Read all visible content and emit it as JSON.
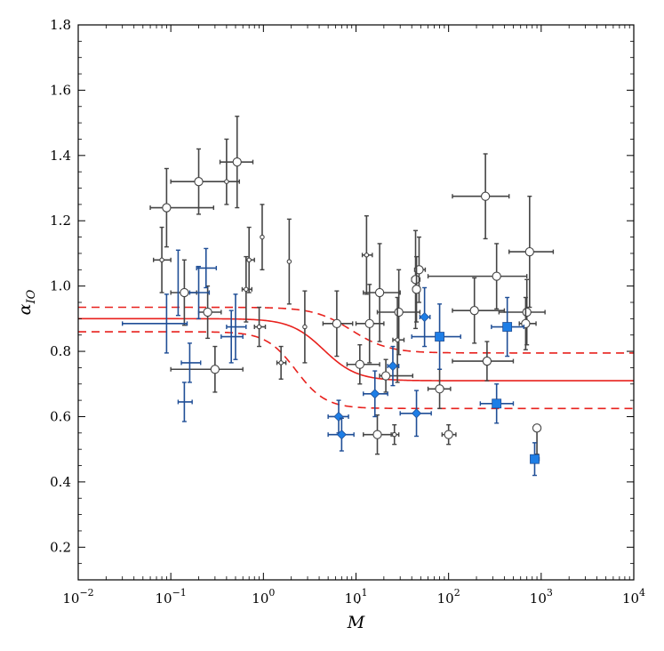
{
  "chart_data": {
    "type": "scatter",
    "title": "",
    "xlabel": "M",
    "xlabel_accent": "˙",
    "ylabel": "α",
    "ylabel_sub": "IO",
    "xscale": "log",
    "xlim": [
      0.01,
      10000
    ],
    "ylim": [
      0.1,
      1.8
    ],
    "x_ticks": [
      {
        "value": 0.01,
        "base": "10",
        "exp": "−2"
      },
      {
        "value": 0.1,
        "base": "10",
        "exp": "−1"
      },
      {
        "value": 1,
        "base": "10",
        "exp": "0"
      },
      {
        "value": 10,
        "base": "10",
        "exp": "1"
      },
      {
        "value": 100,
        "base": "10",
        "exp": "2"
      },
      {
        "value": 1000,
        "base": "10",
        "exp": "3"
      },
      {
        "value": 10000,
        "base": "10",
        "exp": "4"
      }
    ],
    "y_ticks": [
      "0.2",
      "0.4",
      "0.6",
      "0.8",
      "1.0",
      "1.2",
      "1.4",
      "1.6",
      "1.8"
    ],
    "colors": {
      "grey": "#444444",
      "blue": "#1f4e96",
      "blue_fill": "#1e7ee6",
      "fit": "#e8211d",
      "axis": "#000000"
    },
    "series": [
      {
        "name": "grey open circles",
        "marker": "circle-open",
        "color": "#444444",
        "points": [
          {
            "x": 0.09,
            "y": 1.24,
            "xlo": 0.03,
            "xhi": 0.2,
            "ylo": 0.12,
            "yhi": 0.12
          },
          {
            "x": 0.2,
            "y": 1.32,
            "xlo": 0.1,
            "xhi": 0.35,
            "ylo": 0.1,
            "yhi": 0.1
          },
          {
            "x": 0.4,
            "y": 1.32,
            "xlo": 0.0,
            "xhi": 0.0,
            "ylo": 0.07,
            "yhi": 0.13
          },
          {
            "x": 0.52,
            "y": 1.38,
            "xlo": 0.18,
            "xhi": 0.25,
            "ylo": 0.14,
            "yhi": 0.14
          },
          {
            "x": 0.08,
            "y": 1.08,
            "xlo": 0.015,
            "xhi": 0.02,
            "ylo": 0.1,
            "yhi": 0.1
          },
          {
            "x": 0.14,
            "y": 0.98,
            "xlo": 0.04,
            "xhi": 0.05,
            "ylo": 0.1,
            "yhi": 0.1
          },
          {
            "x": 0.3,
            "y": 0.745,
            "xlo": 0.2,
            "xhi": 0.3,
            "ylo": 0.07,
            "yhi": 0.07
          },
          {
            "x": 0.25,
            "y": 0.92,
            "xlo": 0.05,
            "xhi": 0.1,
            "ylo": 0.08,
            "yhi": 0.08
          },
          {
            "x": 0.7,
            "y": 1.08,
            "xlo": 0.05,
            "xhi": 0.1,
            "ylo": 0.1,
            "yhi": 0.1
          },
          {
            "x": 0.65,
            "y": 0.99,
            "xlo": 0.06,
            "xhi": 0.1,
            "ylo": 0.1,
            "yhi": 0.1
          },
          {
            "x": 0.97,
            "y": 1.15,
            "xlo": 0.0,
            "xhi": 0.0,
            "ylo": 0.1,
            "yhi": 0.1
          },
          {
            "x": 0.9,
            "y": 0.875,
            "xlo": 0.1,
            "xhi": 0.15,
            "ylo": 0.06,
            "yhi": 0.06
          },
          {
            "x": 1.9,
            "y": 1.075,
            "xlo": 0.0,
            "xhi": 0.0,
            "ylo": 0.13,
            "yhi": 0.13
          },
          {
            "x": 1.55,
            "y": 0.765,
            "xlo": 0.15,
            "xhi": 0.2,
            "ylo": 0.05,
            "yhi": 0.05
          },
          {
            "x": 2.8,
            "y": 0.875,
            "xlo": 0.0,
            "xhi": 0.0,
            "ylo": 0.11,
            "yhi": 0.11
          },
          {
            "x": 6.2,
            "y": 0.885,
            "xlo": 1.8,
            "xhi": 3.0,
            "ylo": 0.1,
            "yhi": 0.1
          },
          {
            "x": 11,
            "y": 0.76,
            "xlo": 3,
            "xhi": 7,
            "ylo": 0.06,
            "yhi": 0.06
          },
          {
            "x": 13,
            "y": 1.095,
            "xlo": 1.3,
            "xhi": 2,
            "ylo": 0.12,
            "yhi": 0.12
          },
          {
            "x": 14,
            "y": 0.885,
            "xlo": 4,
            "xhi": 6,
            "ylo": 0.12,
            "yhi": 0.12
          },
          {
            "x": 18,
            "y": 0.98,
            "xlo": 6,
            "xhi": 12,
            "ylo": 0.15,
            "yhi": 0.15
          },
          {
            "x": 17,
            "y": 0.545,
            "xlo": 5,
            "xhi": 8,
            "ylo": 0.06,
            "yhi": 0.06
          },
          {
            "x": 21,
            "y": 0.725,
            "xlo": 3,
            "xhi": 20,
            "ylo": 0.05,
            "yhi": 0.05
          },
          {
            "x": 29,
            "y": 0.92,
            "xlo": 12,
            "xhi": 20,
            "ylo": 0.13,
            "yhi": 0.13
          },
          {
            "x": 28,
            "y": 0.835,
            "xlo": 3,
            "xhi": 5,
            "ylo": 0.13,
            "yhi": 0.13
          },
          {
            "x": 26,
            "y": 0.545,
            "xlo": 2,
            "xhi": 3,
            "ylo": 0.03,
            "yhi": 0.03
          },
          {
            "x": 44,
            "y": 1.02,
            "xlo": 4,
            "xhi": 5,
            "ylo": 0.15,
            "yhi": 0.15
          },
          {
            "x": 48,
            "y": 1.05,
            "xlo": 5,
            "xhi": 8,
            "ylo": 0.1,
            "yhi": 0.1
          },
          {
            "x": 45,
            "y": 0.99,
            "xlo": 3,
            "xhi": 4,
            "ylo": 0.1,
            "yhi": 0.1
          },
          {
            "x": 80,
            "y": 0.685,
            "xlo": 20,
            "xhi": 25,
            "ylo": 0.06,
            "yhi": 0.06
          },
          {
            "x": 100,
            "y": 0.545,
            "xlo": 15,
            "xhi": 20,
            "ylo": 0.03,
            "yhi": 0.03
          },
          {
            "x": 250,
            "y": 1.275,
            "xlo": 140,
            "xhi": 200,
            "ylo": 0.13,
            "yhi": 0.13
          },
          {
            "x": 330,
            "y": 1.03,
            "xlo": 270,
            "xhi": 370,
            "ylo": 0.1,
            "yhi": 0.1
          },
          {
            "x": 190,
            "y": 0.925,
            "xlo": 80,
            "xhi": 210,
            "ylo": 0.1,
            "yhi": 0.1
          },
          {
            "x": 260,
            "y": 0.77,
            "xlo": 150,
            "xhi": 240,
            "ylo": 0.06,
            "yhi": 0.06
          },
          {
            "x": 750,
            "y": 1.105,
            "xlo": 300,
            "xhi": 600,
            "ylo": 0.17,
            "yhi": 0.17
          },
          {
            "x": 700,
            "y": 0.92,
            "xlo": 350,
            "xhi": 400,
            "ylo": 0.1,
            "yhi": 0.1
          },
          {
            "x": 680,
            "y": 0.885,
            "xlo": 100,
            "xhi": 200,
            "ylo": 0.08,
            "yhi": 0.08
          },
          {
            "x": 900,
            "y": 0.565,
            "xlo": 40,
            "xhi": 60,
            "ylo": 0.08,
            "yhi": 0.0
          }
        ]
      },
      {
        "name": "blue crosses",
        "marker": "none",
        "color": "#1f4e96",
        "points": [
          {
            "x": 0.09,
            "y": 0.885,
            "xlo": 0.06,
            "xhi": 0.06,
            "ylo": 0.09,
            "yhi": 0.09
          },
          {
            "x": 0.12,
            "y": 1.01,
            "xlo": 0.0,
            "xhi": 0.0,
            "ylo": 0.1,
            "yhi": 0.1
          },
          {
            "x": 0.14,
            "y": 0.645,
            "xlo": 0.02,
            "xhi": 0.03,
            "ylo": 0.06,
            "yhi": 0.06
          },
          {
            "x": 0.16,
            "y": 0.765,
            "xlo": 0.03,
            "xhi": 0.05,
            "ylo": 0.06,
            "yhi": 0.06
          },
          {
            "x": 0.2,
            "y": 0.98,
            "xlo": 0.04,
            "xhi": 0.06,
            "ylo": 0.08,
            "yhi": 0.08
          },
          {
            "x": 0.24,
            "y": 1.055,
            "xlo": 0.05,
            "xhi": 0.07,
            "ylo": 0.06,
            "yhi": 0.06
          },
          {
            "x": 0.45,
            "y": 0.845,
            "xlo": 0.1,
            "xhi": 0.15,
            "ylo": 0.08,
            "yhi": 0.08
          },
          {
            "x": 0.5,
            "y": 0.875,
            "xlo": 0.1,
            "xhi": 0.15,
            "ylo": 0.1,
            "yhi": 0.1
          }
        ]
      },
      {
        "name": "blue diamonds",
        "marker": "diamond",
        "color": "#1e7ee6",
        "points": [
          {
            "x": 6.5,
            "y": 0.6,
            "xlo": 1.5,
            "xhi": 1.8,
            "ylo": 0.05,
            "yhi": 0.05
          },
          {
            "x": 7,
            "y": 0.545,
            "xlo": 2,
            "xhi": 2.5,
            "ylo": 0.05,
            "yhi": 0.05
          },
          {
            "x": 16,
            "y": 0.67,
            "xlo": 4,
            "xhi": 6,
            "ylo": 0.07,
            "yhi": 0.07
          },
          {
            "x": 25,
            "y": 0.755,
            "xlo": 3,
            "xhi": 4,
            "ylo": 0.06,
            "yhi": 0.06
          },
          {
            "x": 45,
            "y": 0.61,
            "xlo": 15,
            "xhi": 20,
            "ylo": 0.07,
            "yhi": 0.07
          },
          {
            "x": 55,
            "y": 0.905,
            "xlo": 6,
            "xhi": 8,
            "ylo": 0.09,
            "yhi": 0.09
          }
        ]
      },
      {
        "name": "blue squares",
        "marker": "square",
        "color": "#1e7ee6",
        "points": [
          {
            "x": 80,
            "y": 0.845,
            "xlo": 40,
            "xhi": 55,
            "ylo": 0.1,
            "yhi": 0.1
          },
          {
            "x": 330,
            "y": 0.64,
            "xlo": 110,
            "xhi": 170,
            "ylo": 0.06,
            "yhi": 0.06
          },
          {
            "x": 430,
            "y": 0.875,
            "xlo": 140,
            "xhi": 220,
            "ylo": 0.09,
            "yhi": 0.09
          },
          {
            "x": 850,
            "y": 0.47,
            "xlo": 80,
            "xhi": 100,
            "ylo": 0.05,
            "yhi": 0.05
          }
        ]
      }
    ],
    "fit": {
      "name": "sigmoid fit",
      "high": 0.9,
      "low": 0.71,
      "center_log10": 0.65,
      "width": 0.18,
      "band_upper": {
        "high": 0.935,
        "low": 0.795,
        "center_log10": 0.95,
        "width": 0.2
      },
      "band_lower": {
        "high": 0.86,
        "low": 0.625,
        "center_log10": 0.35,
        "width": 0.16
      }
    }
  }
}
